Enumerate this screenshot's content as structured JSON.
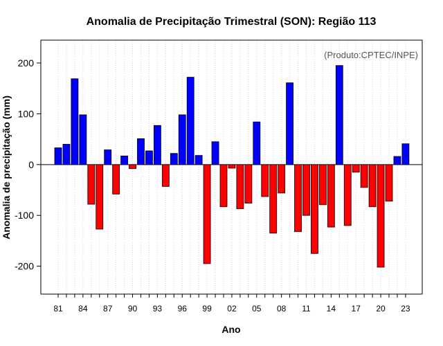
{
  "chart_data": {
    "type": "bar",
    "title": "Anomalia de Precipitação Trimestral (SON): Região 113",
    "xlabel": "Ano",
    "ylabel": "Anomalia de precipitação (mm)",
    "annotation": "(Produto:CPTEC/INPE)",
    "ylim": [
      -255,
      245
    ],
    "yticks": [
      -200,
      -100,
      0,
      100,
      200
    ],
    "ytick_labels": [
      "-200",
      "-100",
      "0",
      "100",
      "200"
    ],
    "xtick_labels": [
      "81",
      "84",
      "87",
      "90",
      "93",
      "96",
      "99",
      "02",
      "05",
      "08",
      "11",
      "14",
      "17",
      "20",
      "23"
    ],
    "years": [
      1981,
      1982,
      1983,
      1984,
      1985,
      1986,
      1987,
      1988,
      1989,
      1990,
      1991,
      1992,
      1993,
      1994,
      1995,
      1996,
      1997,
      1998,
      1999,
      2000,
      2001,
      2002,
      2003,
      2004,
      2005,
      2006,
      2007,
      2008,
      2009,
      2010,
      2011,
      2012,
      2013,
      2014,
      2015,
      2016,
      2017,
      2018,
      2019,
      2020,
      2021,
      2022,
      2023
    ],
    "values": [
      33,
      40,
      169,
      98,
      -78,
      -127,
      29,
      -58,
      17,
      -8,
      51,
      27,
      77,
      -43,
      22,
      98,
      172,
      18,
      -195,
      45,
      -83,
      -7,
      -87,
      -76,
      84,
      -63,
      -135,
      -56,
      161,
      -132,
      -100,
      -175,
      -79,
      -123,
      195,
      -120,
      -15,
      -45,
      -83,
      -202,
      -72,
      16,
      41
    ],
    "positive_color": "#0000ff",
    "negative_color": "#ff0000",
    "grid": "vertical-dotted"
  }
}
